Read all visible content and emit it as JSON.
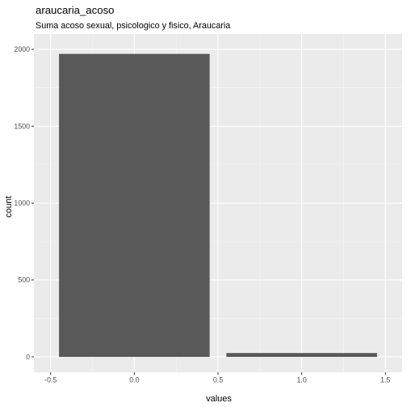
{
  "chart_data": {
    "type": "bar",
    "title": "araucaria_acoso",
    "subtitle": "Suma acoso sexual, psicologico y fisico, Araucaria",
    "xlabel": "values",
    "ylabel": "count",
    "bars": [
      {
        "x": 0,
        "value": 1970
      },
      {
        "x": 1,
        "value": 25
      }
    ],
    "bar_width": 0.9,
    "xlim": [
      -0.5,
      1.5
    ],
    "ylim": [
      0,
      2000
    ],
    "x_ticks": [
      -0.5,
      0.0,
      0.5,
      1.0,
      1.5
    ],
    "x_tick_labels": [
      "-0.5",
      "0.0",
      "0.5",
      "1.0",
      "1.5"
    ],
    "y_ticks": [
      0,
      500,
      1000,
      1500,
      2000
    ],
    "y_tick_labels": [
      "0",
      "500",
      "1000",
      "1500",
      "2000"
    ],
    "grid": true,
    "colors": {
      "bar": "#595959",
      "panel": "#ebebeb",
      "grid_major": "#ffffff",
      "grid_minor": "#f5f5f5"
    }
  }
}
